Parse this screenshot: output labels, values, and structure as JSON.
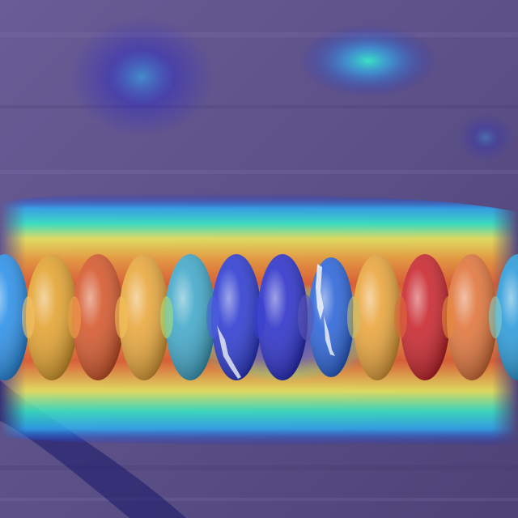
{
  "image": {
    "subject": "insulator-string",
    "overlay": "attention-heatmap",
    "background_color": "#5a4f86",
    "disc_count": 11,
    "heatmap_colors": [
      "#1b1bd6",
      "#2bb7ff",
      "#37f3c9",
      "#f6f15a",
      "#f1a03b",
      "#d4192b"
    ]
  }
}
